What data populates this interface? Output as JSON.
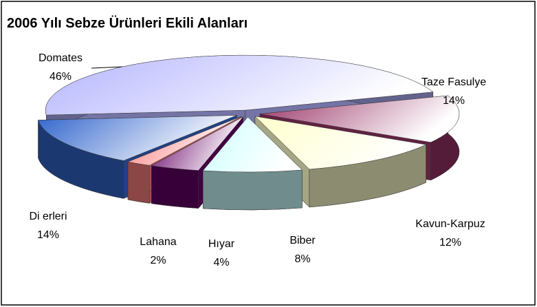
{
  "chart_data": {
    "type": "pie",
    "title": "2006 Yılı Sebze Ürünleri Ekili  Alanları",
    "categories": [
      "Domates",
      "Taze Fasulye",
      "Kavun-Karpuz",
      "Biber",
      "Hıyar",
      "Lahana",
      "Di erleri"
    ],
    "values": [
      46,
      14,
      12,
      8,
      4,
      2,
      14
    ],
    "value_labels": [
      "46%",
      "14%",
      "12%",
      "8%",
      "4%",
      "2%",
      "14%"
    ],
    "colors": [
      "#b3b3ff",
      "#993366",
      "#ffffcc",
      "#ccffff",
      "#660066",
      "#ff8080",
      "#3366cc"
    ]
  }
}
